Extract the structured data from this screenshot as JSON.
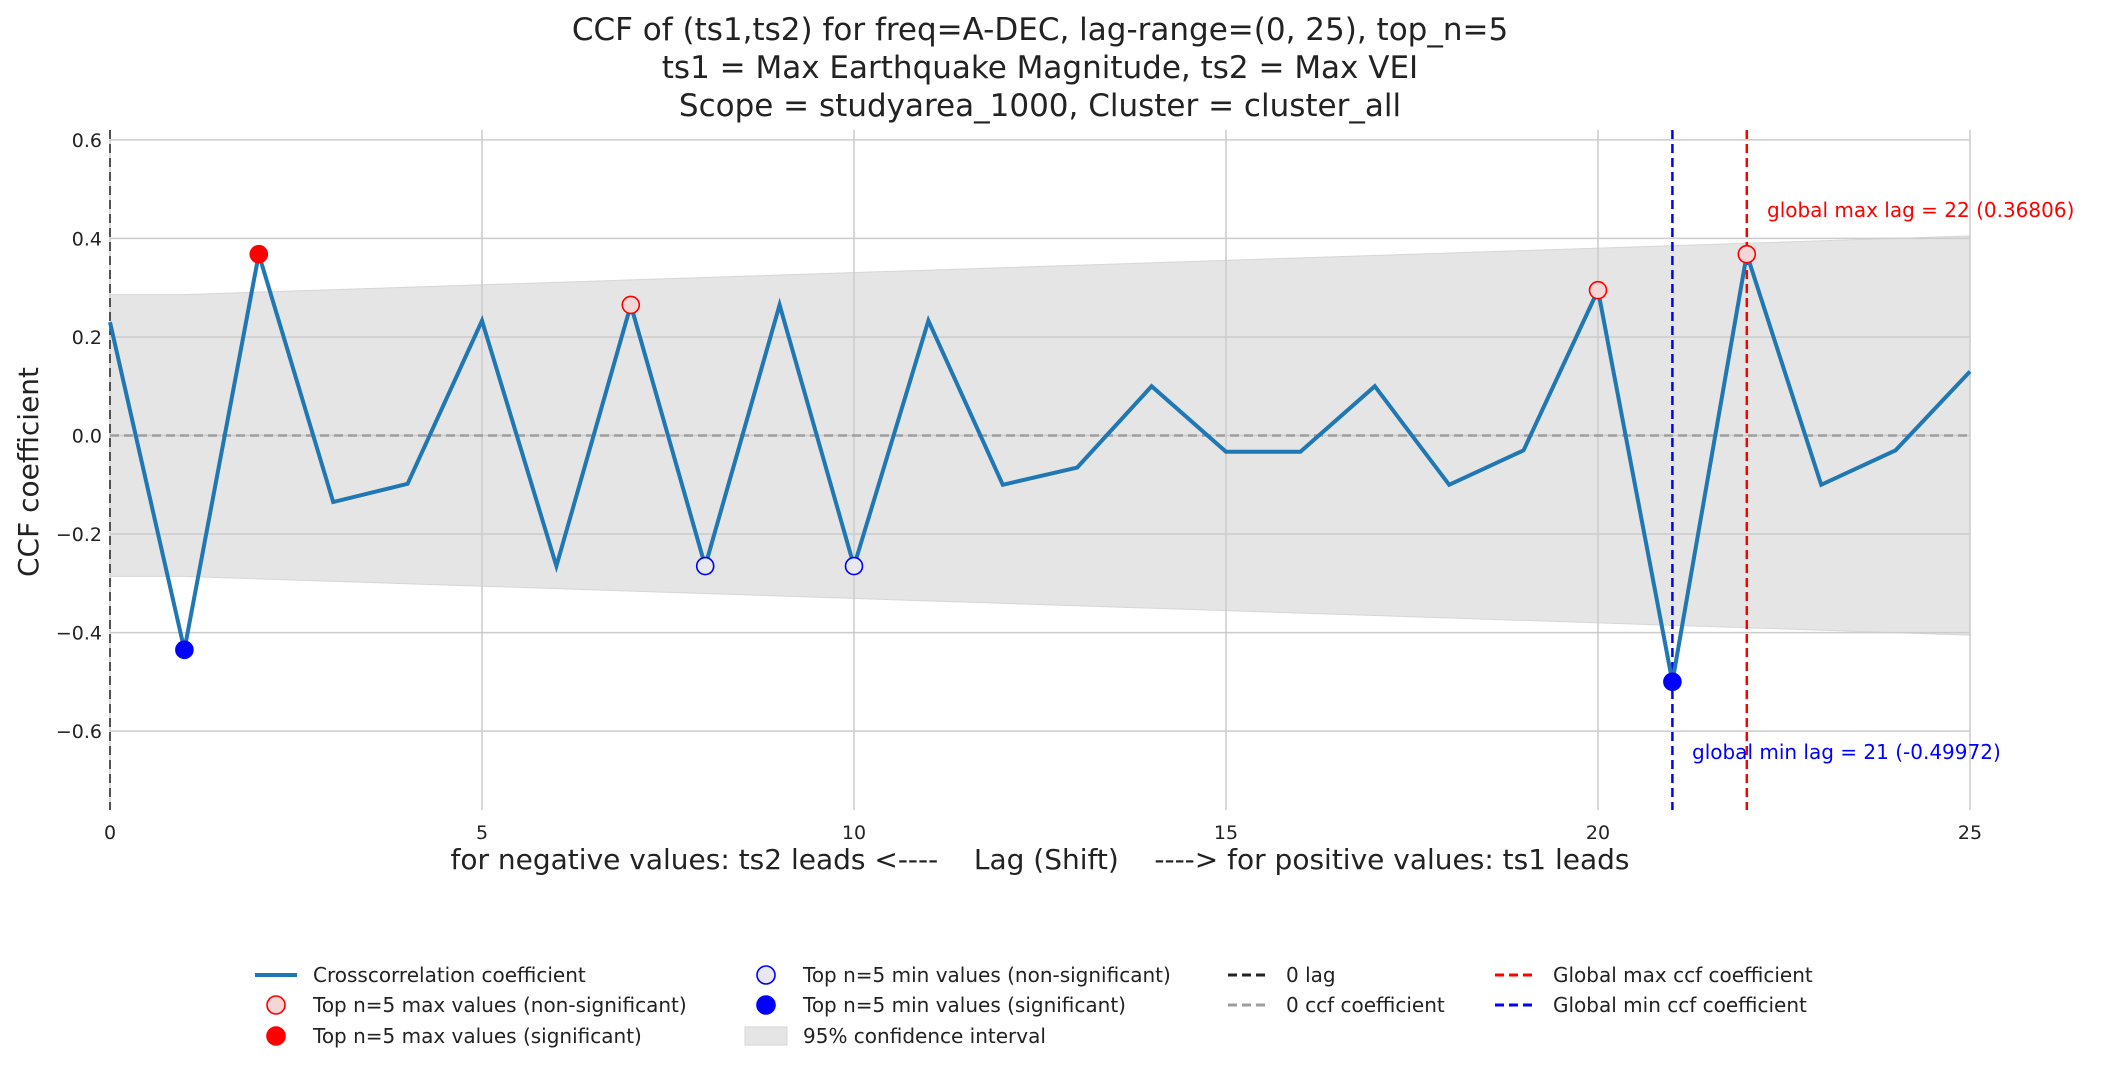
{
  "chart_data": {
    "type": "line",
    "title_lines": [
      "CCF of (ts1,ts2) for freq=A-DEC, lag-range=(0, 25), top_n=5",
      "ts1 = Max Earthquake Magnitude, ts2 = Max VEI",
      "Scope = studyarea_1000, Cluster = cluster_all"
    ],
    "xlabel": "for negative values: ts2 leads <----    Lag (Shift)    ----> for positive values: ts1 leads",
    "ylabel": "CCF coefficient",
    "xlim": [
      0,
      25
    ],
    "ylim": [
      -0.76,
      0.62
    ],
    "xticks": [
      0,
      5,
      10,
      15,
      20,
      25
    ],
    "yticks": [
      -0.6,
      -0.4,
      -0.2,
      0.0,
      0.2,
      0.4,
      0.6
    ],
    "ytick_labels": [
      "−0.6",
      "−0.4",
      "−0.2",
      "0.0",
      "0.2",
      "0.4",
      "0.6"
    ],
    "grid": true,
    "series": [
      {
        "name": "Crosscorrelation coefficient",
        "color": "#1f77b4",
        "x": [
          0,
          1,
          2,
          3,
          4,
          5,
          6,
          7,
          8,
          9,
          10,
          11,
          12,
          13,
          14,
          15,
          16,
          17,
          18,
          19,
          20,
          21,
          22,
          23,
          24,
          25
        ],
        "values": [
          0.23,
          -0.435,
          0.368,
          -0.135,
          -0.098,
          0.233,
          -0.265,
          0.265,
          -0.265,
          0.265,
          -0.265,
          0.233,
          -0.1,
          -0.065,
          0.1,
          -0.033,
          -0.033,
          0.1,
          -0.1,
          -0.03,
          0.295,
          -0.49972,
          0.36806,
          -0.1,
          -0.03,
          0.13
        ]
      }
    ],
    "confidence_interval": {
      "name": "95% confidence interval",
      "x": [
        0,
        1,
        25
      ],
      "upper": [
        0.286,
        0.286,
        0.405
      ],
      "lower": [
        -0.286,
        -0.286,
        -0.405
      ],
      "color": "#e5e5e5"
    },
    "top_max_nonsig": {
      "x": [
        7,
        20,
        22
      ],
      "y": [
        0.265,
        0.295,
        0.36806
      ]
    },
    "top_max_sig": {
      "x": [
        2
      ],
      "y": [
        0.368
      ]
    },
    "top_min_nonsig": {
      "x": [
        8,
        10
      ],
      "y": [
        -0.265,
        -0.265
      ]
    },
    "top_min_sig": {
      "x": [
        1,
        21
      ],
      "y": [
        -0.435,
        -0.49972
      ]
    },
    "zero_lag_x": 0,
    "zero_ccf_y": 0,
    "global_max": {
      "lag": 22,
      "value": 0.36806,
      "label": "global max lag = 22 (0.36806)",
      "color": "#ff0000"
    },
    "global_min": {
      "lag": 21,
      "value": -0.49972,
      "label": "global min lag = 21 (-0.49972)",
      "color": "#0000ff"
    },
    "legend": {
      "placement": "bottom",
      "entries": [
        {
          "key": "ccf_line",
          "label": "Crosscorrelation coefficient"
        },
        {
          "key": "max_nonsig",
          "label": "Top n=5 max values (non-significant)"
        },
        {
          "key": "max_sig",
          "label": "Top n=5 max values (significant)"
        },
        {
          "key": "min_nonsig",
          "label": "Top n=5 min values (non-significant)"
        },
        {
          "key": "min_sig",
          "label": "Top n=5 min values (significant)"
        },
        {
          "key": "ci",
          "label": "95% confidence interval"
        },
        {
          "key": "zero_lag",
          "label": "0 lag"
        },
        {
          "key": "zero_ccf",
          "label": "0 ccf coefficient"
        },
        {
          "key": "global_max",
          "label": "Global max ccf coefficient"
        },
        {
          "key": "global_min",
          "label": "Global min ccf coefficient"
        }
      ]
    }
  }
}
